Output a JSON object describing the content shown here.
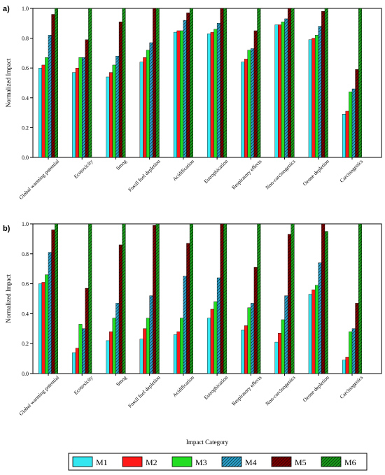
{
  "colors": {
    "M1": "#33e6f0",
    "M2": "#ff1a1a",
    "M3": "#22dd22",
    "M4": "#2aa0c8",
    "M5": "#7a0000",
    "M6": "#1a9a1a",
    "axis": "#000000"
  },
  "legend": {
    "entries": [
      {
        "name": "M1",
        "hatch": false
      },
      {
        "name": "M2",
        "hatch": false
      },
      {
        "name": "M3",
        "hatch": false
      },
      {
        "name": "M4",
        "hatch": true
      },
      {
        "name": "M5",
        "hatch": true
      },
      {
        "name": "M6",
        "hatch": true
      }
    ]
  },
  "xlabel_shared": "Impact Category",
  "chart_data": [
    {
      "type": "bar",
      "panel_label": "a)",
      "ylabel": "Normalized Impact",
      "ylim": [
        0,
        1.0
      ],
      "yticks": [
        "0.0",
        "0.2",
        "0.4",
        "0.6",
        "0.8",
        "1.0"
      ],
      "categories": [
        "Global warming potential",
        "Ecotoxicity",
        "Smog",
        "Fossil fuel depletion",
        "Acidification",
        "Eutrophication",
        "Respiratory effects",
        "Non-carcinogenics",
        "Ozone depletion",
        "Carcinogenics"
      ],
      "series": [
        {
          "name": "M1",
          "values": [
            0.6,
            0.57,
            0.54,
            0.64,
            0.84,
            0.83,
            0.64,
            0.89,
            0.79,
            0.29
          ]
        },
        {
          "name": "M2",
          "values": [
            0.62,
            0.6,
            0.57,
            0.67,
            0.85,
            0.84,
            0.66,
            0.89,
            0.8,
            0.31
          ]
        },
        {
          "name": "M3",
          "values": [
            0.67,
            0.67,
            0.62,
            0.72,
            0.85,
            0.86,
            0.72,
            0.91,
            0.82,
            0.44
          ]
        },
        {
          "name": "M4",
          "values": [
            0.82,
            0.67,
            0.68,
            0.77,
            0.92,
            0.9,
            0.73,
            0.93,
            0.88,
            0.46
          ]
        },
        {
          "name": "M5",
          "values": [
            0.96,
            0.79,
            0.91,
            1.0,
            0.97,
            1.0,
            0.85,
            1.0,
            0.98,
            0.59
          ]
        },
        {
          "name": "M6",
          "values": [
            1.0,
            1.0,
            1.0,
            1.0,
            1.0,
            1.0,
            1.0,
            1.0,
            1.0,
            1.0
          ]
        }
      ]
    },
    {
      "type": "bar",
      "panel_label": "b)",
      "ylabel": "Normalized Impact",
      "ylim": [
        0,
        1.0
      ],
      "yticks": [
        "0.0",
        "0.2",
        "0.4",
        "0.6",
        "0.8",
        "1.0"
      ],
      "categories": [
        "Global warming potential",
        "Ecotoxicity",
        "Smog",
        "Fossil fuel depletion",
        "Acidification",
        "Eutrophication",
        "Respiratory effects",
        "Non-carcinogenics",
        "Ozone depletion",
        "Carcinogenics"
      ],
      "series": [
        {
          "name": "M1",
          "values": [
            0.6,
            0.14,
            0.22,
            0.23,
            0.26,
            0.37,
            0.29,
            0.21,
            0.53,
            0.09
          ]
        },
        {
          "name": "M2",
          "values": [
            0.61,
            0.17,
            0.28,
            0.3,
            0.28,
            0.43,
            0.32,
            0.27,
            0.56,
            0.11
          ]
        },
        {
          "name": "M3",
          "values": [
            0.66,
            0.33,
            0.37,
            0.37,
            0.37,
            0.48,
            0.44,
            0.36,
            0.59,
            0.28
          ]
        },
        {
          "name": "M4",
          "values": [
            0.81,
            0.3,
            0.47,
            0.52,
            0.65,
            0.64,
            0.47,
            0.52,
            0.74,
            0.3
          ]
        },
        {
          "name": "M5",
          "values": [
            0.96,
            0.57,
            0.86,
            0.99,
            0.87,
            1.0,
            0.71,
            0.93,
            1.0,
            0.47
          ]
        },
        {
          "name": "M6",
          "values": [
            1.0,
            1.0,
            1.0,
            1.0,
            1.0,
            1.0,
            1.0,
            1.0,
            0.95,
            1.0
          ]
        }
      ]
    }
  ]
}
